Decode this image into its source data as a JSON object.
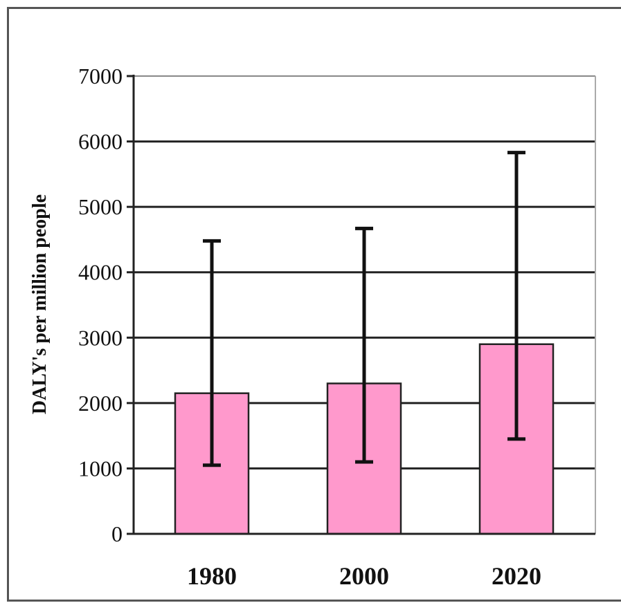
{
  "chart_data": {
    "type": "bar",
    "title": "",
    "xlabel": "",
    "ylabel": "DALY's per million people",
    "categories": [
      "1980",
      "2000",
      "2020"
    ],
    "values": [
      2150,
      2300,
      2900
    ],
    "error_low": [
      1050,
      1100,
      1450
    ],
    "error_high": [
      4480,
      4670,
      5830
    ],
    "ylim": [
      0,
      7000
    ],
    "yticks": [
      0,
      1000,
      2000,
      3000,
      4000,
      5000,
      6000,
      7000
    ],
    "grid": true,
    "legend": "none",
    "bar_color": "#ff99cc",
    "bar_edge_color": "#222222",
    "gridline_color": "#222222"
  }
}
